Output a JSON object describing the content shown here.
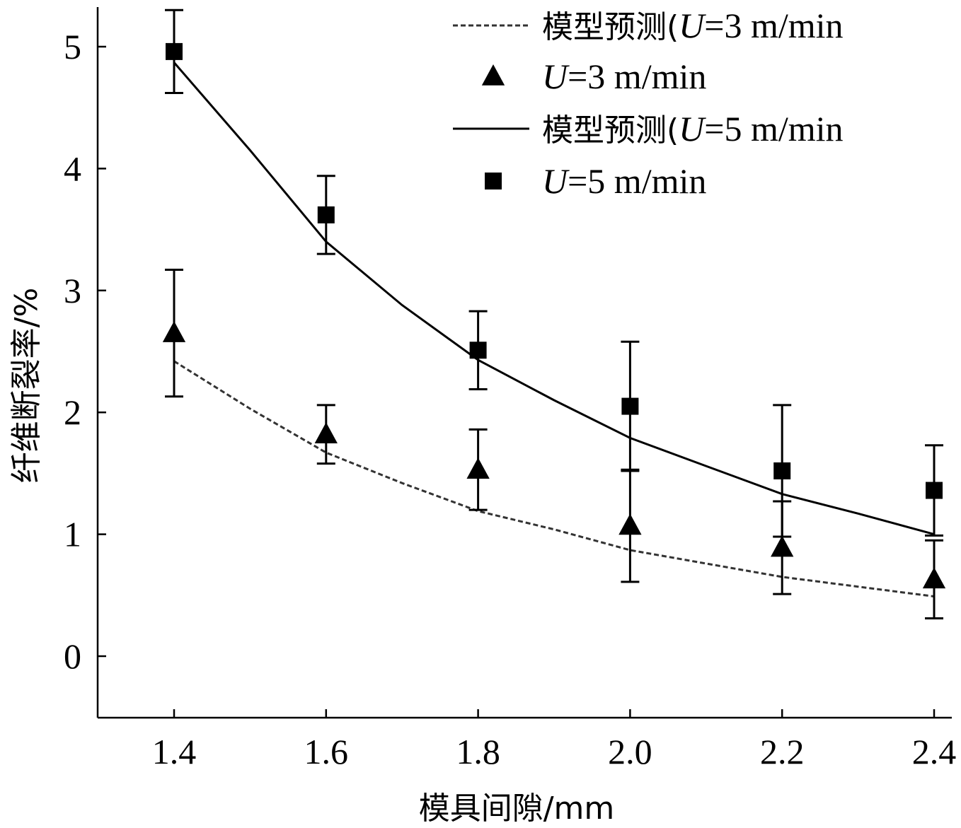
{
  "chart_data": {
    "type": "line",
    "xlabel": "模具间隙/mm",
    "ylabel": "纤维断裂率/%",
    "xlim": [
      1.3,
      2.42
    ],
    "ylim": [
      -0.5,
      5.3
    ],
    "x_ticks": [
      "1.4",
      "1.6",
      "1.8",
      "2.0",
      "2.2",
      "2.4"
    ],
    "y_ticks": [
      "0",
      "1",
      "2",
      "3",
      "4",
      "5"
    ],
    "grid": false,
    "legend_position": "top-right",
    "legend": [
      {
        "label_prefix": "模型预测(",
        "var": "U",
        "label_suffix": "=3 m/min",
        "marker": "dashed-line"
      },
      {
        "label_prefix": "",
        "var": "U",
        "label_suffix": "=3 m/min",
        "marker": "triangle"
      },
      {
        "label_prefix": "模型预测(",
        "var": "U",
        "label_suffix": "=5 m/min",
        "marker": "solid-line"
      },
      {
        "label_prefix": "",
        "var": "U",
        "label_suffix": "=5 m/min",
        "marker": "square"
      }
    ],
    "series": [
      {
        "key": "model_u3",
        "kind": "line",
        "style": "dashed",
        "color": "#333333",
        "x": [
          1.4,
          1.5,
          1.6,
          1.7,
          1.8,
          1.9,
          2.0,
          2.1,
          2.2,
          2.3,
          2.4
        ],
        "y": [
          2.42,
          2.03,
          1.67,
          1.42,
          1.19,
          1.04,
          0.87,
          0.76,
          0.65,
          0.57,
          0.49
        ]
      },
      {
        "key": "data_u3",
        "kind": "scatter",
        "marker": "triangle",
        "color": "#000000",
        "x": [
          1.4,
          1.6,
          1.8,
          2.0,
          2.2,
          2.4
        ],
        "y": [
          2.65,
          1.82,
          1.53,
          1.07,
          0.89,
          0.63
        ],
        "err": [
          0.52,
          0.24,
          0.33,
          0.46,
          0.38,
          0.32
        ]
      },
      {
        "key": "model_u5",
        "kind": "line",
        "style": "solid",
        "color": "#000000",
        "x": [
          1.4,
          1.5,
          1.6,
          1.7,
          1.8,
          1.9,
          2.0,
          2.1,
          2.2,
          2.3,
          2.4
        ],
        "y": [
          4.87,
          4.15,
          3.4,
          2.88,
          2.43,
          2.1,
          1.79,
          1.56,
          1.33,
          1.17,
          1.0
        ]
      },
      {
        "key": "data_u5",
        "kind": "scatter",
        "marker": "square",
        "color": "#000000",
        "x": [
          1.4,
          1.6,
          1.8,
          2.0,
          2.2,
          2.4
        ],
        "y": [
          4.96,
          3.62,
          2.51,
          2.05,
          1.52,
          1.36
        ],
        "err": [
          0.34,
          0.32,
          0.32,
          0.53,
          0.54,
          0.37
        ]
      }
    ]
  }
}
